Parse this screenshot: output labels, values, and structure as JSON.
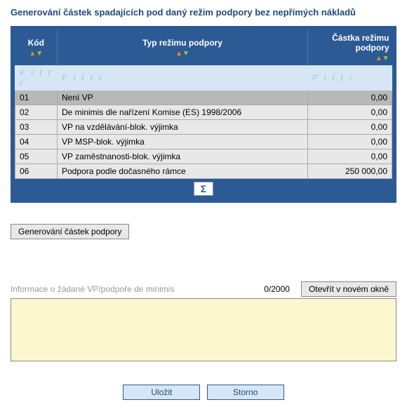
{
  "title": "Generování částek spadajících pod daný režim podpory bez nepřímých nákladů",
  "table": {
    "headers": {
      "code": "Kód",
      "type": "Typ režimu podpory",
      "amount": "Částka režimu podpory"
    },
    "filter_placeholder": "F i l t r",
    "rows": [
      {
        "code": "01",
        "type": "Není VP",
        "amount": "0,00",
        "selected": true
      },
      {
        "code": "02",
        "type": "De minimis dle nařízení Komise (ES) 1998/2006",
        "amount": "0,00",
        "selected": false
      },
      {
        "code": "03",
        "type": "VP na vzdělávání-blok. výjimka",
        "amount": "0,00",
        "selected": false
      },
      {
        "code": "04",
        "type": "VP MSP-blok. výjimka",
        "amount": "0,00",
        "selected": false
      },
      {
        "code": "05",
        "type": "VP zaměstnanosti-blok. výjimka",
        "amount": "0,00",
        "selected": false
      },
      {
        "code": "06",
        "type": "Podpora podle dočasného rámce",
        "amount": "250 000,00",
        "selected": false
      }
    ],
    "sigma": "Σ"
  },
  "buttons": {
    "generate": "Generování částek podpory",
    "open_window": "Otevřít v novém okně",
    "save": "Uložit",
    "cancel": "Storno"
  },
  "info": {
    "label": "Informace o žádané VP/podpoře de minimis",
    "counter": "0/2000"
  },
  "colors": {
    "header_bg": "#2c5a94",
    "header_text": "#ffffff",
    "title_color": "#204a7b",
    "filter_bg": "#d6e6f5",
    "row_bg": "#e8e8e8",
    "selected_bg": "#b8b8b8",
    "textarea_bg": "#fdf7d0",
    "btn_bg": "#d6e6f5",
    "arrow_up": "#ff8c00",
    "arrow_down": "#9acd32"
  }
}
